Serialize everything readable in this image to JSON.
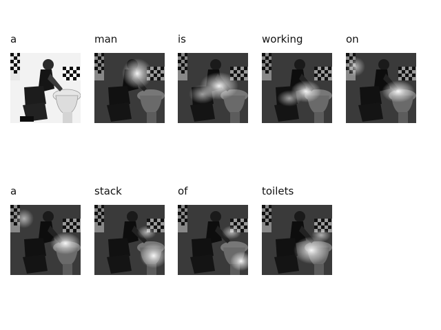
{
  "caption_words": [
    "a",
    "man",
    "is",
    "working",
    "on",
    "a",
    "stack",
    "of",
    "toilets"
  ],
  "panels": [
    {
      "word": "a",
      "image": "original-photo",
      "highlight": "none"
    },
    {
      "word": "man",
      "image": "attention-map",
      "highlight": "man-head"
    },
    {
      "word": "is",
      "image": "attention-map",
      "highlight": "arm-center"
    },
    {
      "word": "working",
      "image": "attention-map",
      "highlight": "hands-toilet"
    },
    {
      "word": "on",
      "image": "attention-map",
      "highlight": "toilet-right"
    },
    {
      "word": "a",
      "image": "attention-map",
      "highlight": "toilet-right"
    },
    {
      "word": "stack",
      "image": "attention-map",
      "highlight": "toilet-lower-right"
    },
    {
      "word": "of",
      "image": "attention-map",
      "highlight": "toilet-lower-right"
    },
    {
      "word": "toilets",
      "image": "attention-map",
      "highlight": "toilet-center"
    }
  ]
}
